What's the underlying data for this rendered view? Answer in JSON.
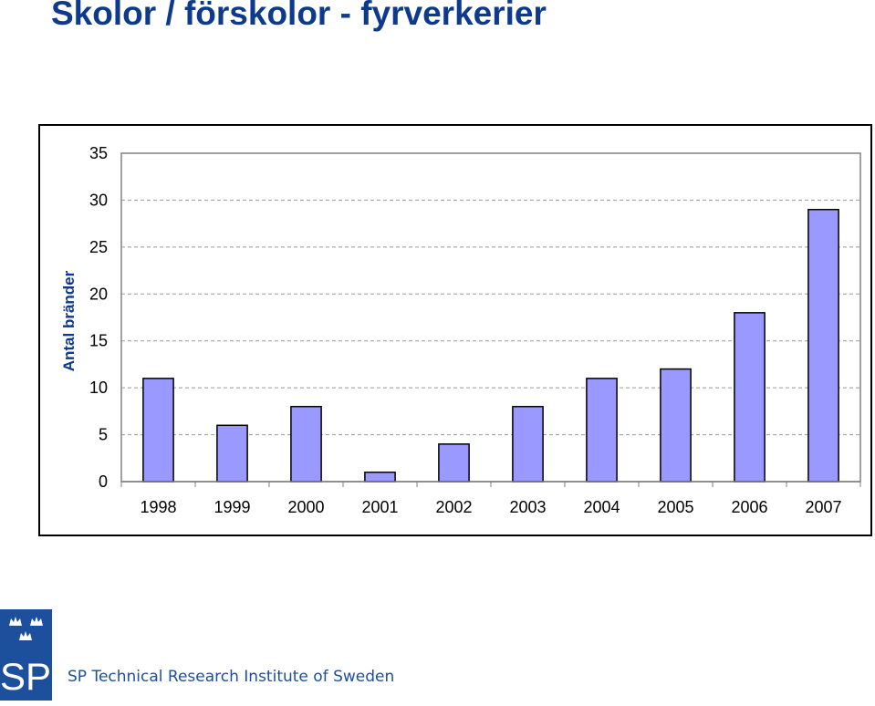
{
  "slide": {
    "title": "Skolor / förskolor - fyrverkerier"
  },
  "logo": {
    "icon": "sp-three-crowns-logo",
    "text": "SP"
  },
  "footer": {
    "org_name": "SP Technical Research Institute of Sweden"
  },
  "colors": {
    "title": "#0d3a8c",
    "bar_fill": "#9999ff",
    "bar_stroke": "#000000",
    "logo_bg": "#1c4f9c"
  },
  "chart_data": {
    "type": "bar",
    "title": "",
    "xlabel": "",
    "ylabel": "Antal bränder",
    "categories": [
      "1998",
      "1999",
      "2000",
      "2001",
      "2002",
      "2003",
      "2004",
      "2005",
      "2006",
      "2007"
    ],
    "values": [
      11,
      6,
      8,
      1,
      4,
      8,
      11,
      12,
      18,
      29
    ],
    "ylim": [
      0,
      35
    ],
    "yticks": [
      "0",
      "5",
      "10",
      "15",
      "20",
      "25",
      "30",
      "35"
    ],
    "grid": true,
    "legend": "none"
  }
}
